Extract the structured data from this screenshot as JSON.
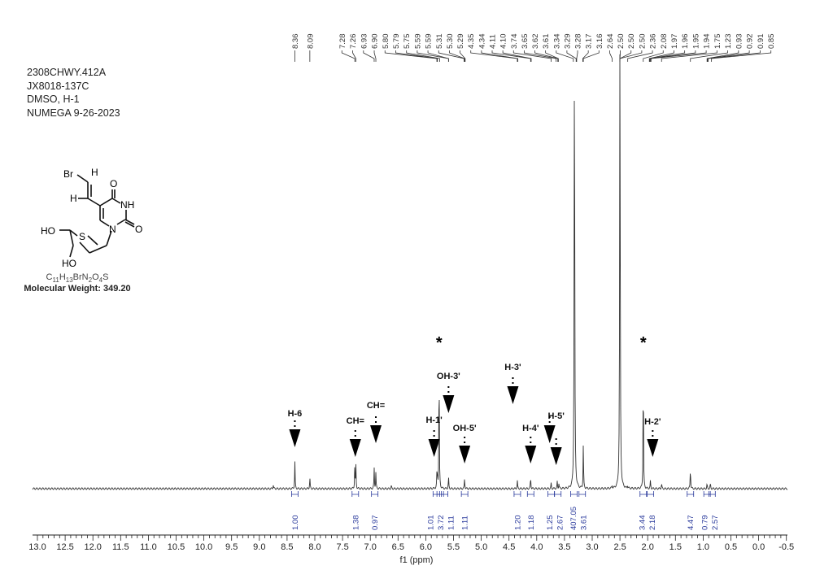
{
  "header": {
    "lines": [
      "2308CHWY.412A",
      "JX8018-137C",
      "DMSO, H-1",
      "NUMEGA 9-26-2023"
    ]
  },
  "structure": {
    "atoms": [
      "Br",
      "H",
      "H",
      "O",
      "NH",
      "O",
      "N",
      "HO",
      "S",
      "HO"
    ],
    "formula": "C11H13BrN2O4S",
    "molecular_weight": "Molecular Weight: 349.20"
  },
  "chart_data": {
    "type": "line",
    "title": "",
    "xlabel": "f1 (ppm)",
    "xlim": [
      13.0,
      -0.5
    ],
    "x_reversed": true,
    "x_ticks": [
      "13.0",
      "12.5",
      "12.0",
      "11.5",
      "11.0",
      "10.5",
      "10.0",
      "9.5",
      "9.0",
      "8.5",
      "8.0",
      "7.5",
      "7.0",
      "6.5",
      "6.0",
      "5.5",
      "5.0",
      "4.5",
      "4.0",
      "3.5",
      "3.0",
      "2.5",
      "2.0",
      "1.5",
      "1.0",
      "0.5",
      "0.0",
      "-0.5"
    ],
    "grid": false,
    "peak_labels": [
      "8.36",
      "8.09",
      "7.28",
      "7.26",
      "6.93",
      "6.90",
      "5.80",
      "5.79",
      "5.75",
      "5.59",
      "5.59",
      "5.31",
      "5.30",
      "5.29",
      "4.35",
      "4.34",
      "4.11",
      "4.10",
      "3.74",
      "3.65",
      "3.62",
      "3.61",
      "3.34",
      "3.29",
      "3.28",
      "3.17",
      "3.16",
      "2.64",
      "2.50",
      "2.50",
      "2.50",
      "2.36",
      "2.08",
      "1.97",
      "1.96",
      "1.95",
      "1.94",
      "1.75",
      "1.23",
      "0.93",
      "0.92",
      "0.91",
      "0.85"
    ],
    "peaks": [
      {
        "ppm": 8.75,
        "rel": 0.01
      },
      {
        "ppm": 8.36,
        "rel": 0.06
      },
      {
        "ppm": 8.09,
        "rel": 0.025
      },
      {
        "ppm": 7.28,
        "rel": 0.05
      },
      {
        "ppm": 7.26,
        "rel": 0.05
      },
      {
        "ppm": 6.93,
        "rel": 0.045
      },
      {
        "ppm": 6.9,
        "rel": 0.035
      },
      {
        "ppm": 6.62,
        "rel": 0.006
      },
      {
        "ppm": 5.8,
        "rel": 0.028
      },
      {
        "ppm": 5.79,
        "rel": 0.028
      },
      {
        "ppm": 5.76,
        "rel": 0.3
      },
      {
        "ppm": 5.59,
        "rel": 0.026
      },
      {
        "ppm": 5.3,
        "rel": 0.024
      },
      {
        "ppm": 4.35,
        "rel": 0.018
      },
      {
        "ppm": 4.11,
        "rel": 0.027
      },
      {
        "ppm": 3.74,
        "rel": 0.011
      },
      {
        "ppm": 3.63,
        "rel": 0.015
      },
      {
        "ppm": 3.6,
        "rel": 0.012
      },
      {
        "ppm": 3.32,
        "rel": 1.0
      },
      {
        "ppm": 3.16,
        "rel": 0.1
      },
      {
        "ppm": 2.64,
        "rel": 0.006
      },
      {
        "ppm": 2.5,
        "rel": 1.0
      },
      {
        "ppm": 2.36,
        "rel": 0.006
      },
      {
        "ppm": 2.08,
        "rel": 0.28
      },
      {
        "ppm": 1.95,
        "rel": 0.018
      },
      {
        "ppm": 1.75,
        "rel": 0.012
      },
      {
        "ppm": 1.23,
        "rel": 0.05
      },
      {
        "ppm": 0.93,
        "rel": 0.01
      },
      {
        "ppm": 0.87,
        "rel": 0.012
      }
    ],
    "integrals": [
      {
        "ppm": 8.36,
        "value": "1.00"
      },
      {
        "ppm": 7.27,
        "value": "1.38"
      },
      {
        "ppm": 6.92,
        "value": "0.97"
      },
      {
        "ppm": 5.81,
        "value": "1.01"
      },
      {
        "ppm": 5.74,
        "value": "3.72"
      },
      {
        "ppm": 5.66,
        "value": "1.11"
      },
      {
        "ppm": 5.3,
        "value": "1.11"
      },
      {
        "ppm": 4.35,
        "value": "1.20"
      },
      {
        "ppm": 4.11,
        "value": "1.18"
      },
      {
        "ppm": 3.74,
        "value": "1.25"
      },
      {
        "ppm": 3.62,
        "value": "2.67"
      },
      {
        "ppm": 3.33,
        "value": "407.05"
      },
      {
        "ppm": 3.18,
        "value": "3.61"
      },
      {
        "ppm": 2.08,
        "value": "3.44"
      },
      {
        "ppm": 1.95,
        "value": "2.18"
      },
      {
        "ppm": 1.23,
        "value": "4.47"
      },
      {
        "ppm": 0.93,
        "value": "0.79"
      },
      {
        "ppm": 0.84,
        "value": "2.57"
      }
    ],
    "annotations": [
      {
        "label": "H-6",
        "ppm": 8.36
      },
      {
        "label": "CH=",
        "ppm": 7.27
      },
      {
        "label": "CH=",
        "ppm": 6.9
      },
      {
        "label": "H-1'",
        "ppm": 5.85
      },
      {
        "label": "OH-3'",
        "ppm": 5.59
      },
      {
        "label": "OH-5'",
        "ppm": 5.3
      },
      {
        "label": "H-3'",
        "ppm": 4.43
      },
      {
        "label": "H-4'",
        "ppm": 4.11
      },
      {
        "label": "H-5'",
        "ppm": 3.65
      },
      {
        "label": "H-2'",
        "ppm": 1.91
      }
    ],
    "solvent_markers": [
      {
        "label": "*",
        "ppm": 5.76
      },
      {
        "label": "*",
        "ppm": 2.08
      }
    ]
  }
}
